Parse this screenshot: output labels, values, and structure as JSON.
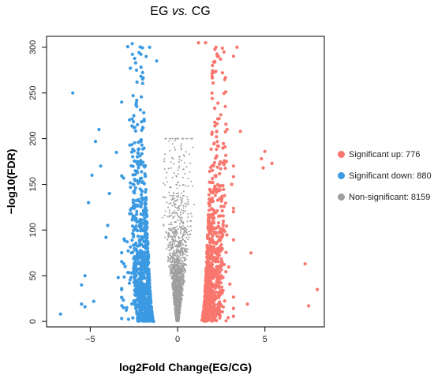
{
  "chart_data": {
    "type": "scatter",
    "title_prefix": "EG ",
    "title_italic": "vs.",
    "title_suffix": " CG",
    "xlabel": "log2Fold Change(EG/CG)",
    "ylabel": "−log10(FDR)",
    "xlim": [
      -7.5,
      8.4
    ],
    "ylim": [
      -6,
      312
    ],
    "xticks": [
      -5,
      0,
      5
    ],
    "xtick_labels": [
      "−5",
      "0",
      "5"
    ],
    "yticks": [
      0,
      50,
      100,
      150,
      200,
      250,
      300
    ],
    "ytick_labels": [
      "0",
      "50",
      "100",
      "150",
      "200",
      "250",
      "300"
    ],
    "grid": false,
    "legend_position": "right",
    "series": [
      {
        "key": "up",
        "name": "Significant up: 776",
        "color": "#F8766D",
        "count": 776,
        "highlight_points": [
          [
            1.2,
            305
          ],
          [
            1.6,
            305
          ],
          [
            2.2,
            300
          ],
          [
            3.4,
            300
          ],
          [
            2.0,
            280
          ],
          [
            3.6,
            208
          ],
          [
            5.0,
            186
          ],
          [
            4.8,
            178
          ],
          [
            5.4,
            173
          ],
          [
            4.9,
            168
          ],
          [
            3.1,
            150
          ],
          [
            4.2,
            75
          ],
          [
            7.3,
            63
          ],
          [
            8.0,
            35
          ],
          [
            7.5,
            17
          ],
          [
            4.0,
            19
          ],
          [
            2.9,
            4
          ],
          [
            2.6,
            48
          ],
          [
            3.2,
            120
          ],
          [
            2.8,
            175
          ]
        ]
      },
      {
        "key": "down",
        "name": "Significant down: 880",
        "color": "#3B9AE1",
        "count": 880,
        "highlight_points": [
          [
            -2.6,
            304
          ],
          [
            -1.6,
            300
          ],
          [
            -1.8,
            290
          ],
          [
            -2.4,
            283
          ],
          [
            -1.2,
            285
          ],
          [
            -6.0,
            250
          ],
          [
            -3.2,
            240
          ],
          [
            -4.5,
            210
          ],
          [
            -4.7,
            197
          ],
          [
            -3.5,
            185
          ],
          [
            -4.4,
            170
          ],
          [
            -4.9,
            160
          ],
          [
            -3.9,
            140
          ],
          [
            -5.1,
            130
          ],
          [
            -4.0,
            105
          ],
          [
            -4.1,
            92
          ],
          [
            -5.3,
            50
          ],
          [
            -5.5,
            40
          ],
          [
            -3.4,
            48
          ],
          [
            -5.5,
            19
          ],
          [
            -5.3,
            16
          ],
          [
            -4.8,
            22
          ],
          [
            -6.7,
            8
          ],
          [
            -3.0,
            60
          ],
          [
            -2.7,
            122
          ]
        ]
      },
      {
        "key": "ns",
        "name": "Non-significant: 8159",
        "color": "#9E9E9E",
        "count": 8159
      }
    ]
  }
}
